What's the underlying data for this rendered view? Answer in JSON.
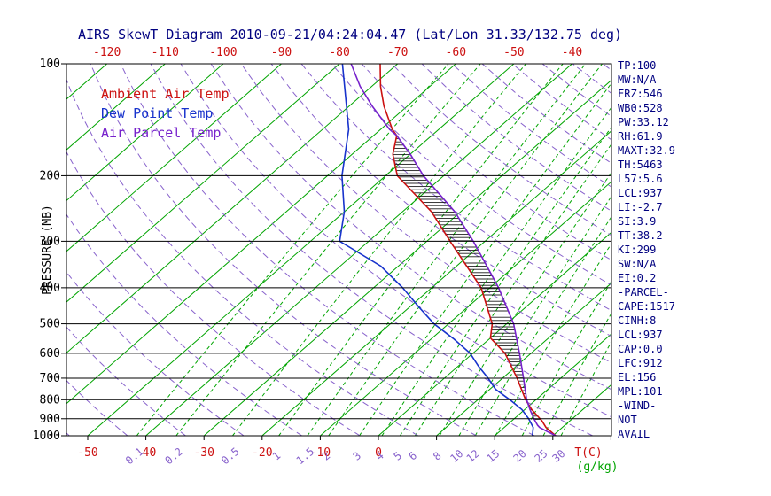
{
  "title": "AIRS SkewT Diagram 2010-09-21/04:24:04.47 (Lat/Lon 31.33/132.75 deg)",
  "legend": {
    "ambient": "Ambient Air Temp",
    "dewpoint": "Dew Point Temp",
    "parcel": "Air Parcel Temp"
  },
  "axes": {
    "pressure_label": "PRESSURE (MB)",
    "pressure_ticks_mb": [
      100,
      200,
      300,
      400,
      500,
      600,
      700,
      800,
      900,
      1000
    ],
    "top_temp_ticks_c": [
      -120,
      -110,
      -100,
      -90,
      -80,
      -70,
      -60,
      -50,
      -40
    ],
    "bottom_temp_ticks_c": [
      -50,
      -40,
      -30,
      -20,
      -10,
      0
    ],
    "mixing_ratio_ticks_g_kg": [
      0.1,
      0.2,
      0.5,
      1,
      1.5,
      2,
      3,
      4,
      5,
      6,
      8,
      10,
      12,
      15,
      20,
      25,
      30
    ],
    "temp_unit_label": "T(C)",
    "mixing_unit_label": "(g/kg)"
  },
  "stats_panel": {
    "lines": [
      "TP:100",
      "MW:N/A",
      "FRZ:546",
      "WB0:528",
      "PW:33.12",
      "RH:61.9",
      "MAXT:32.9",
      "TH:5463",
      "L57:5.6",
      "LCL:937",
      "LI:-2.7",
      "SI:3.9",
      "TT:38.2",
      "KI:299",
      "SW:N/A",
      "EI:0.2",
      "-PARCEL-",
      "CAPE:1517",
      "CINH:8",
      "LCL:937",
      "CAP:0.0",
      "LFC:912",
      "EL:156",
      "MPL:101",
      "-WIND-",
      "NOT",
      "AVAIL"
    ]
  },
  "colors": {
    "red": "#cc1111",
    "blue": "#1833cc",
    "green": "#00a400",
    "purple_dash": "#8862cc",
    "parcel_purple": "#7722cc",
    "navy": "#000080",
    "black": "#000000"
  },
  "chart_data": {
    "type": "line",
    "subtype": "skew-t-log-p",
    "title": "AIRS SkewT Diagram 2010-09-21/04:24:04.47 (Lat/Lon 31.33/132.75 deg)",
    "grid": true,
    "legend_position": "top-left-inside",
    "y_axis": {
      "label": "PRESSURE (MB)",
      "scale": "log",
      "range_mb": [
        100,
        1000
      ],
      "ticks_mb": [
        100,
        200,
        300,
        400,
        500,
        600,
        700,
        800,
        900,
        1000
      ]
    },
    "x_axis": {
      "label": "T(C)",
      "isotherm_step_c": 10,
      "top_edge_ticks_c": [
        -120,
        -110,
        -100,
        -90,
        -80,
        -70,
        -60,
        -50,
        -40
      ],
      "bottom_edge_ticks_c": [
        -50,
        -40,
        -30,
        -20,
        -10,
        0
      ]
    },
    "isotherms_c": {
      "min": -130,
      "max": 40,
      "step": 10
    },
    "dry_adiabats_theta_k": {
      "min": 220,
      "max": 460,
      "step": 10
    },
    "mixing_ratio_lines_g_kg": [
      0.1,
      0.2,
      0.5,
      1,
      1.5,
      2,
      3,
      4,
      5,
      6,
      8,
      10,
      12,
      15,
      20,
      25,
      30
    ],
    "cape_hatch_mb": {
      "from": 912,
      "to": 156
    },
    "series": [
      {
        "name": "Ambient Air Temp",
        "color_key": "red",
        "points_p_t": [
          [
            1000,
            30.5
          ],
          [
            950,
            27.2
          ],
          [
            912,
            25.2
          ],
          [
            850,
            21.2
          ],
          [
            800,
            18.2
          ],
          [
            700,
            12.5
          ],
          [
            600,
            5.5
          ],
          [
            546,
            0
          ],
          [
            500,
            -2.5
          ],
          [
            400,
            -11.5
          ],
          [
            300,
            -26
          ],
          [
            250,
            -35
          ],
          [
            200,
            -48
          ],
          [
            175,
            -53
          ],
          [
            156,
            -56
          ],
          [
            150,
            -58
          ],
          [
            130,
            -64
          ],
          [
            115,
            -68.5
          ],
          [
            100,
            -73
          ]
        ]
      },
      {
        "name": "Dew Point Temp",
        "color_key": "blue",
        "points_p_t": [
          [
            1000,
            26.5
          ],
          [
            950,
            25
          ],
          [
            900,
            22.5
          ],
          [
            850,
            19.5
          ],
          [
            800,
            15.5
          ],
          [
            750,
            11
          ],
          [
            700,
            7.5
          ],
          [
            650,
            3.5
          ],
          [
            600,
            -0.5
          ],
          [
            550,
            -6
          ],
          [
            500,
            -12.5
          ],
          [
            450,
            -18.5
          ],
          [
            400,
            -25
          ],
          [
            350,
            -33
          ],
          [
            300,
            -45
          ],
          [
            250,
            -50
          ],
          [
            200,
            -57.5
          ],
          [
            150,
            -65.5
          ],
          [
            100,
            -79.5
          ]
        ]
      },
      {
        "name": "Air Parcel Temp",
        "color_key": "parcel_purple",
        "points_p_t": [
          [
            1000,
            30.5
          ],
          [
            975,
            28.3
          ],
          [
            950,
            26.1
          ],
          [
            937,
            25.3
          ],
          [
            900,
            23.4
          ],
          [
            850,
            20.9
          ],
          [
            800,
            18.4
          ],
          [
            700,
            13.6
          ],
          [
            600,
            8
          ],
          [
            500,
            1.2
          ],
          [
            400,
            -8.5
          ],
          [
            300,
            -22
          ],
          [
            250,
            -31
          ],
          [
            200,
            -43.5
          ],
          [
            175,
            -50
          ],
          [
            156,
            -56
          ],
          [
            150,
            -58.5
          ],
          [
            130,
            -66
          ],
          [
            115,
            -72
          ],
          [
            100,
            -78
          ]
        ]
      }
    ]
  }
}
